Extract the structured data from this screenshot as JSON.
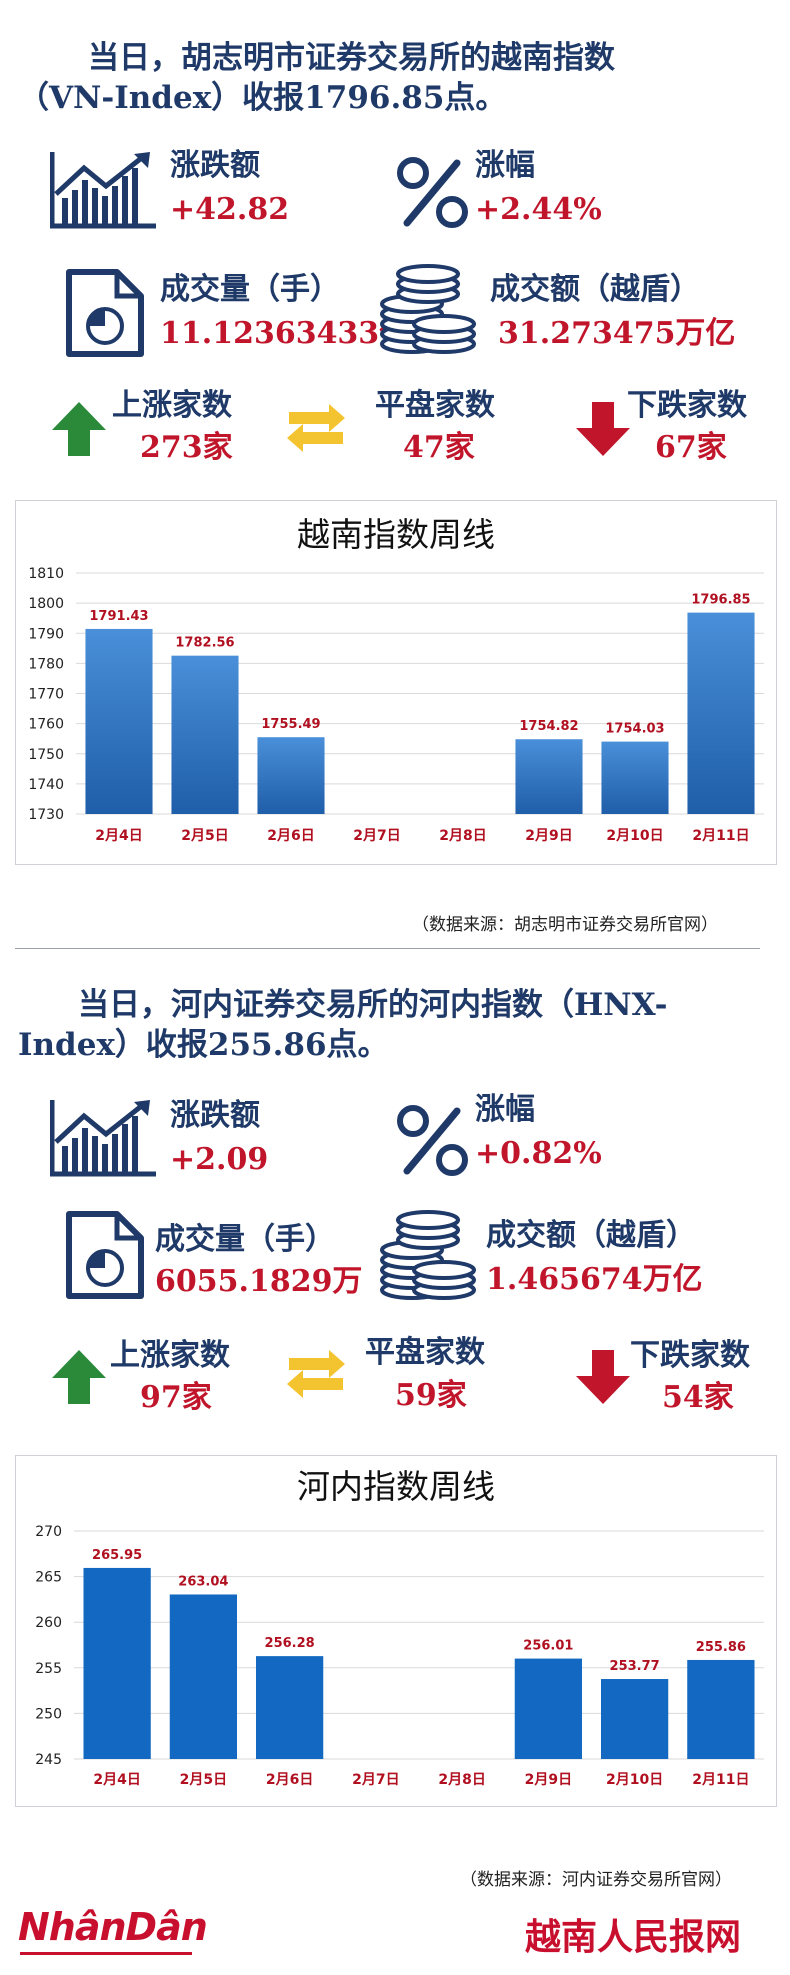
{
  "colors": {
    "navy": "#1f3a68",
    "red": "#c0152a",
    "green": "#2a8a3a",
    "yellow": "#f4c430",
    "bar_top": "#4a8fd9",
    "bar_bottom": "#1f5ea8",
    "bar_flat": "#1369c2"
  },
  "section1": {
    "headline_line1": "当日，胡志明市证券交易所的越南指数",
    "headline_line2": "（VN-Index）收报1796.85点。",
    "change_label": "涨跌额",
    "change_value": "+42.82",
    "pct_label": "涨幅",
    "pct_value": "+2.44%",
    "volume_label": "成交量（手）",
    "volume_value": "11.12363433亿",
    "turnover_label": "成交额（越盾）",
    "turnover_value": "31.273475万亿",
    "up_label": "上涨家数",
    "up_value": "273家",
    "flat_label": "平盘家数",
    "flat_value": "47家",
    "down_label": "下跌家数",
    "down_value": "67家",
    "source": "（数据来源：胡志明市证券交易所官网）"
  },
  "section2": {
    "headline_line1": "当日，河内证券交易所的河内指数（HNX-",
    "headline_line2": "Index）收报255.86点。",
    "change_label": "涨跌额",
    "change_value": "+2.09",
    "pct_label": "涨幅",
    "pct_value": "+0.82%",
    "volume_label": "成交量（手）",
    "volume_value": "6055.1829万",
    "turnover_label": "成交额（越盾）",
    "turnover_value": "1.465674万亿",
    "up_label": "上涨家数",
    "up_value": "97家",
    "flat_label": "平盘家数",
    "flat_value": "59家",
    "down_label": "下跌家数",
    "down_value": "54家",
    "source": "（数据来源：河内证券交易所官网）"
  },
  "footer": {
    "logo": "NhânDân",
    "brand": "越南人民报网"
  },
  "icons": {
    "chart": "trend-chart-icon",
    "percent": "percent-icon",
    "document": "document-chart-icon",
    "coins": "coin-stack-icon",
    "up": "up-arrow-icon",
    "flat": "swap-arrows-icon",
    "down": "down-arrow-icon"
  },
  "chart_data": [
    {
      "type": "bar",
      "title": "越南指数周线",
      "categories": [
        "2月4日",
        "2月5日",
        "2月6日",
        "2月7日",
        "2月8日",
        "2月9日",
        "2月10日",
        "2月11日"
      ],
      "values": [
        1791.43,
        1782.56,
        1755.49,
        null,
        null,
        1754.82,
        1754.03,
        1796.85
      ],
      "labels": [
        "1791.43",
        "1782.56",
        "1755.49",
        "",
        "",
        "1754.82",
        "1754.03",
        "1796.85"
      ],
      "ylim": [
        1730,
        1810
      ],
      "yticks": [
        "1730",
        "1740",
        "1750",
        "1760",
        "1770",
        "1780",
        "1790",
        "1800",
        "1810"
      ],
      "ytick_values": [
        1730,
        1740,
        1750,
        1760,
        1770,
        1780,
        1790,
        1800,
        1810
      ],
      "grid": true,
      "gradient": true
    },
    {
      "type": "bar",
      "title": "河内指数周线",
      "categories": [
        "2月4日",
        "2月5日",
        "2月6日",
        "2月7日",
        "2月8日",
        "2月9日",
        "2月10日",
        "2月11日"
      ],
      "values": [
        265.95,
        263.04,
        256.28,
        null,
        null,
        256.01,
        253.77,
        255.86
      ],
      "labels": [
        "265.95",
        "263.04",
        "256.28",
        "",
        "",
        "256.01",
        "253.77",
        "255.86"
      ],
      "ylim": [
        245,
        270
      ],
      "yticks": [
        "245",
        "250",
        "255",
        "260",
        "265",
        "270"
      ],
      "ytick_values": [
        245,
        250,
        255,
        260,
        265,
        270
      ],
      "grid": true,
      "gradient": false
    }
  ]
}
